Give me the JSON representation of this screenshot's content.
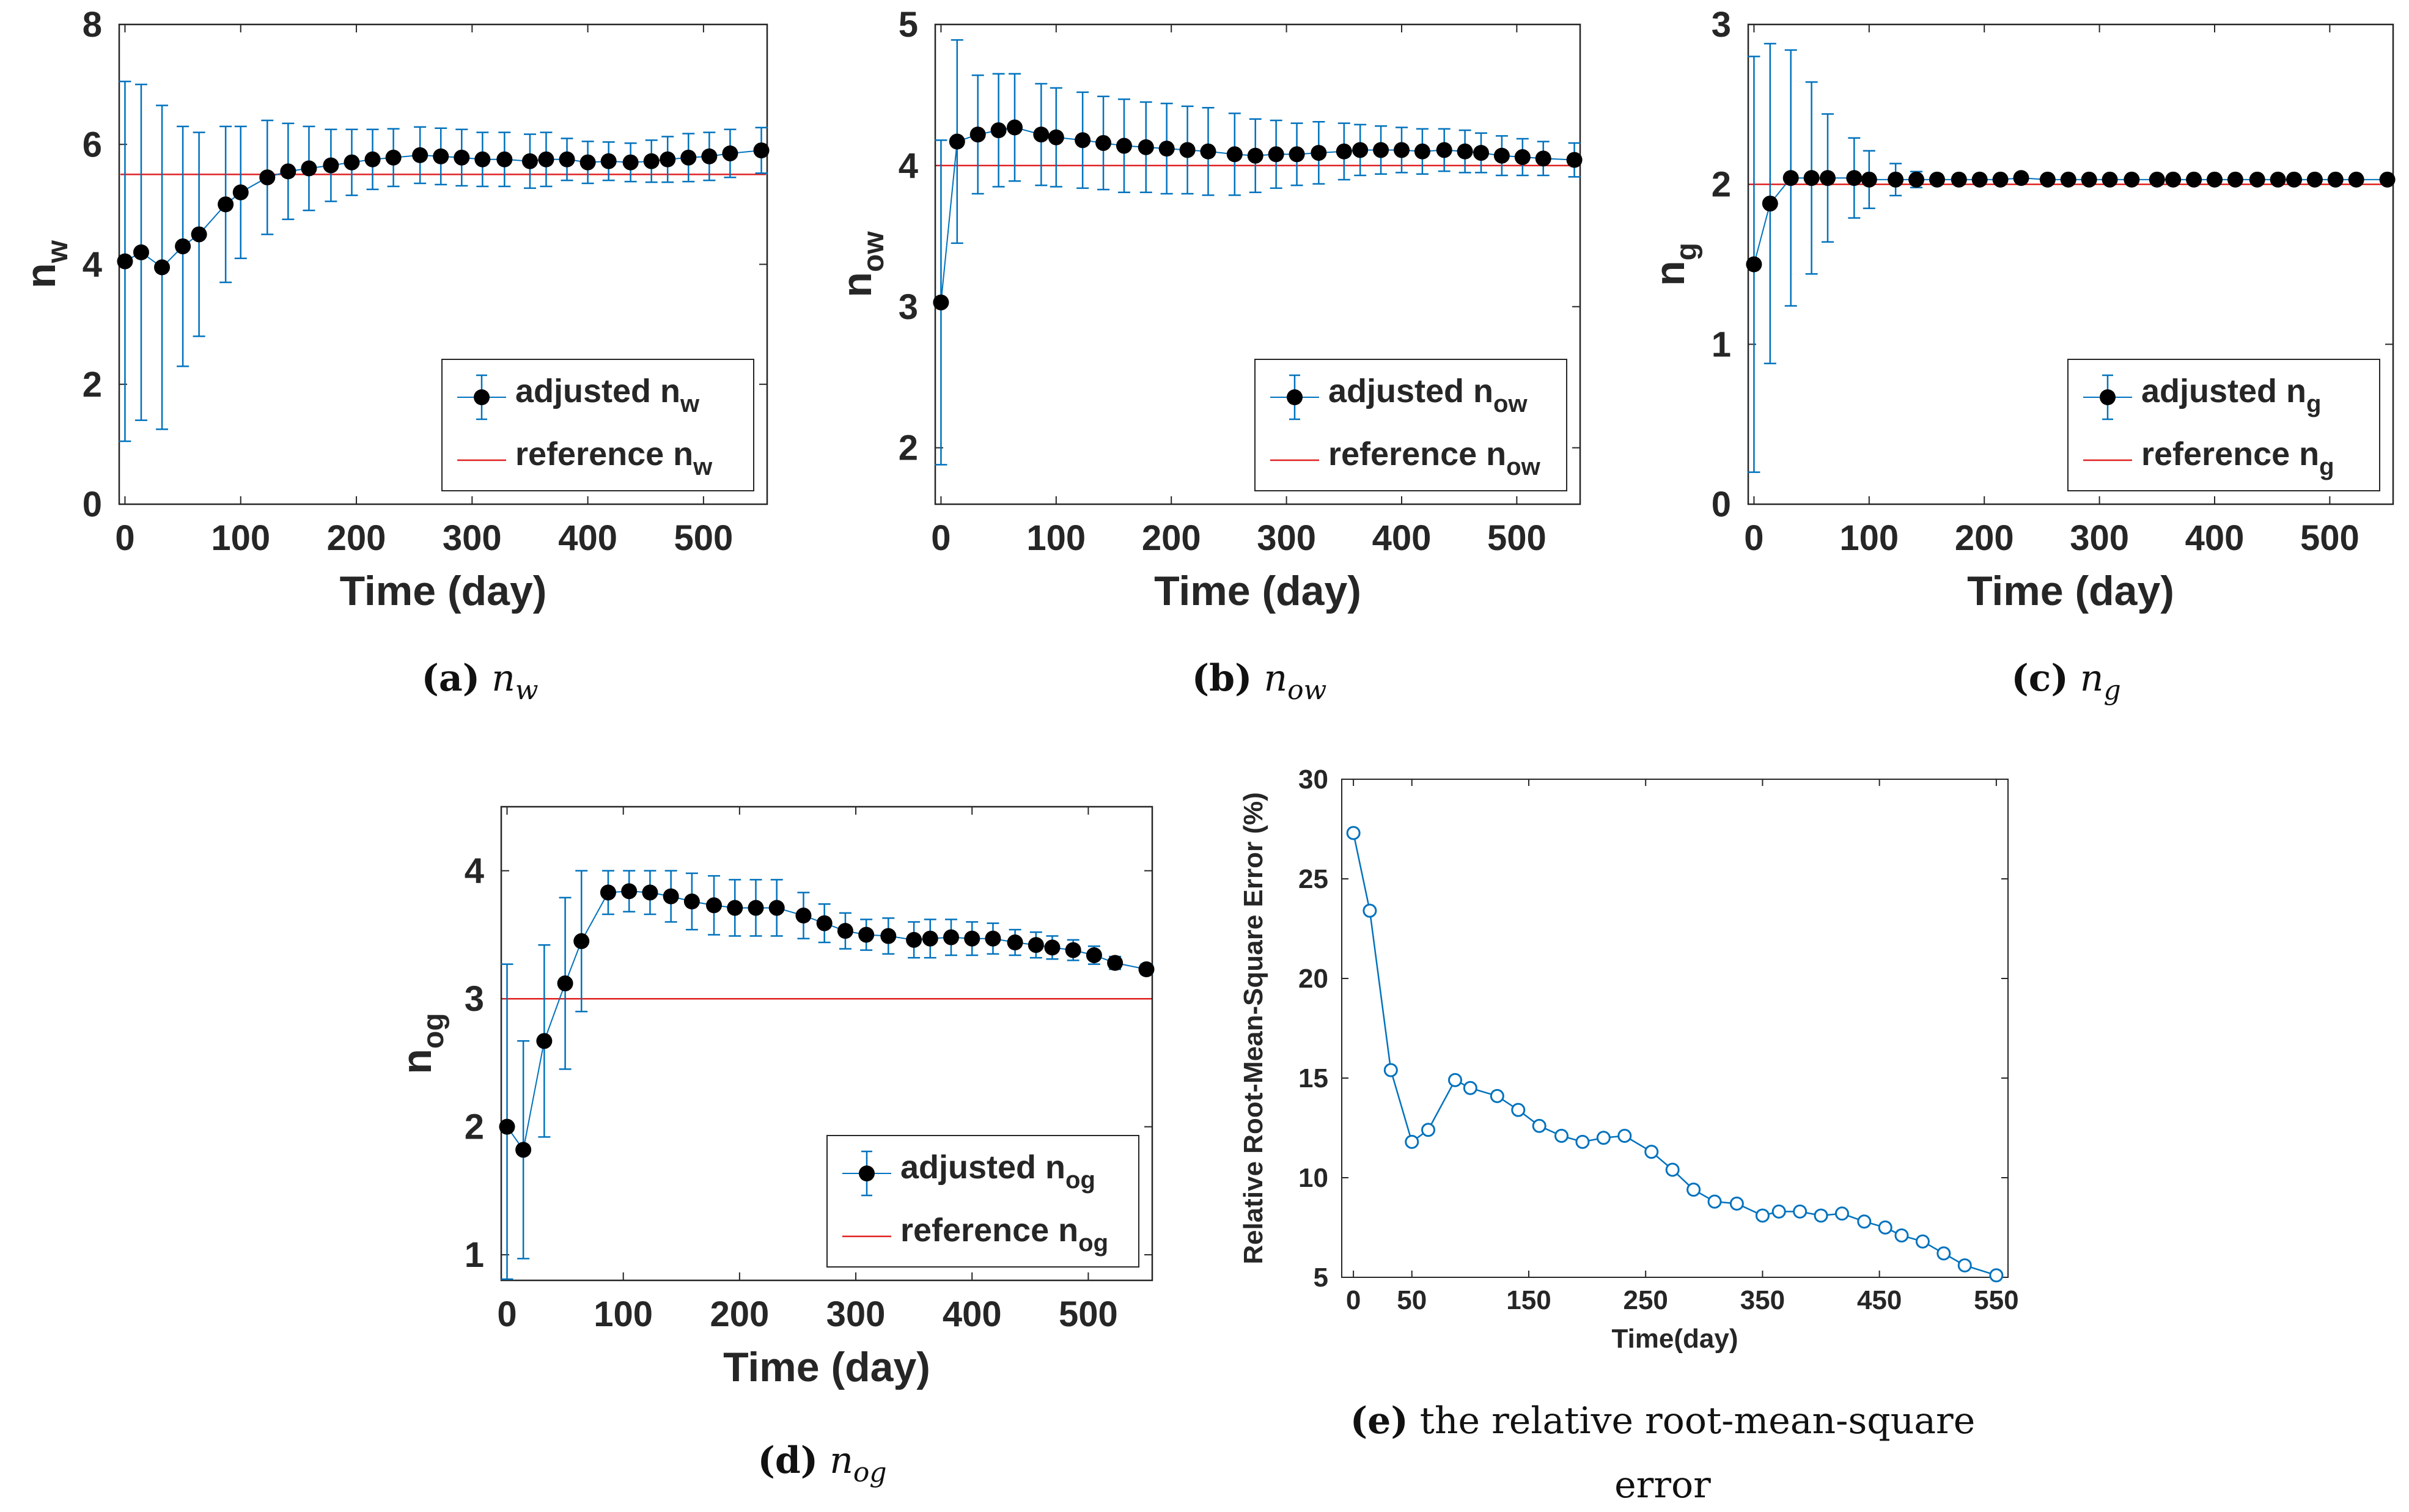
{
  "panels": [
    {
      "id": "a",
      "caption": {
        "letter": "(a)",
        "symbol": "n",
        "subscript": "w"
      },
      "chart_data": {
        "type": "line",
        "style": "errorbar",
        "xlabel": "Time (day)",
        "ylabel": {
          "base": "n",
          "sub": "w"
        },
        "xlim": [
          -5,
          555
        ],
        "ylim": [
          0,
          8
        ],
        "xticks": [
          0,
          100,
          200,
          300,
          400,
          500
        ],
        "yticks": [
          0,
          2,
          4,
          6,
          8
        ],
        "legend": {
          "position": "bottom-right",
          "adjusted": {
            "text": "adjusted n",
            "sub": "w"
          },
          "reference": {
            "text": "reference n",
            "sub": "w"
          }
        },
        "reference": 5.5,
        "x": [
          0,
          14,
          32,
          50,
          64,
          87,
          100,
          123,
          141,
          159,
          178,
          196,
          214,
          232,
          255,
          273,
          291,
          309,
          328,
          350,
          364,
          382,
          400,
          418,
          437,
          455,
          469,
          487,
          505,
          523,
          550
        ],
        "y": [
          4.05,
          4.2,
          3.95,
          4.3,
          4.5,
          5.0,
          5.2,
          5.45,
          5.55,
          5.6,
          5.65,
          5.7,
          5.75,
          5.78,
          5.82,
          5.8,
          5.78,
          5.75,
          5.75,
          5.72,
          5.75,
          5.75,
          5.7,
          5.72,
          5.7,
          5.72,
          5.75,
          5.78,
          5.8,
          5.85,
          5.9
        ],
        "err": [
          3.0,
          2.8,
          2.7,
          2.0,
          1.7,
          1.3,
          1.1,
          0.95,
          0.8,
          0.7,
          0.6,
          0.55,
          0.5,
          0.48,
          0.47,
          0.47,
          0.47,
          0.45,
          0.45,
          0.45,
          0.45,
          0.35,
          0.35,
          0.32,
          0.32,
          0.35,
          0.38,
          0.4,
          0.4,
          0.4,
          0.38
        ]
      }
    },
    {
      "id": "b",
      "caption": {
        "letter": "(b)",
        "symbol": "n",
        "subscript": "ow"
      },
      "chart_data": {
        "type": "line",
        "style": "errorbar",
        "xlabel": "Time (day)",
        "ylabel": {
          "base": "n",
          "sub": "ow"
        },
        "xlim": [
          -5,
          555
        ],
        "ylim": [
          1.6,
          5
        ],
        "xticks": [
          0,
          100,
          200,
          300,
          400,
          500
        ],
        "yticks": [
          2,
          3,
          4,
          5
        ],
        "legend": {
          "position": "bottom-right",
          "adjusted": {
            "text": "adjusted n",
            "sub": "ow"
          },
          "reference": {
            "text": "reference n",
            "sub": "ow"
          }
        },
        "reference": 4.0,
        "x": [
          0,
          14,
          32,
          50,
          64,
          87,
          100,
          123,
          141,
          159,
          178,
          196,
          214,
          232,
          255,
          273,
          291,
          309,
          328,
          350,
          364,
          382,
          400,
          418,
          437,
          455,
          469,
          487,
          505,
          523,
          550
        ],
        "y": [
          3.03,
          4.17,
          4.22,
          4.25,
          4.27,
          4.22,
          4.2,
          4.18,
          4.16,
          4.14,
          4.13,
          4.12,
          4.11,
          4.1,
          4.08,
          4.07,
          4.08,
          4.08,
          4.09,
          4.1,
          4.11,
          4.11,
          4.11,
          4.1,
          4.11,
          4.1,
          4.09,
          4.07,
          4.06,
          4.05,
          4.04
        ],
        "err": [
          1.15,
          0.72,
          0.42,
          0.4,
          0.38,
          0.36,
          0.35,
          0.34,
          0.33,
          0.33,
          0.32,
          0.32,
          0.31,
          0.31,
          0.29,
          0.26,
          0.24,
          0.22,
          0.22,
          0.2,
          0.18,
          0.17,
          0.16,
          0.16,
          0.15,
          0.15,
          0.14,
          0.14,
          0.13,
          0.12,
          0.12
        ]
      }
    },
    {
      "id": "c",
      "caption": {
        "letter": "(c)",
        "symbol": "n",
        "subscript": "g"
      },
      "chart_data": {
        "type": "line",
        "style": "errorbar",
        "xlabel": "Time (day)",
        "ylabel": {
          "base": "n",
          "sub": "g"
        },
        "xlim": [
          -5,
          555
        ],
        "ylim": [
          0,
          3
        ],
        "xticks": [
          0,
          100,
          200,
          300,
          400,
          500
        ],
        "yticks": [
          0,
          1,
          2,
          3
        ],
        "legend": {
          "position": "bottom-right",
          "adjusted": {
            "text": "adjusted n",
            "sub": "g"
          },
          "reference": {
            "text": "reference n",
            "sub": "g"
          }
        },
        "reference": 2.0,
        "x": [
          0,
          14,
          32,
          50,
          64,
          87,
          100,
          123,
          141,
          159,
          178,
          196,
          214,
          232,
          255,
          273,
          291,
          309,
          328,
          350,
          364,
          382,
          400,
          418,
          437,
          455,
          469,
          487,
          505,
          523,
          550
        ],
        "y": [
          1.5,
          1.88,
          2.04,
          2.04,
          2.04,
          2.04,
          2.03,
          2.03,
          2.03,
          2.03,
          2.03,
          2.03,
          2.03,
          2.04,
          2.03,
          2.03,
          2.03,
          2.03,
          2.03,
          2.03,
          2.03,
          2.03,
          2.03,
          2.03,
          2.03,
          2.03,
          2.03,
          2.03,
          2.03,
          2.03,
          2.03
        ],
        "err": [
          1.3,
          1.0,
          0.8,
          0.6,
          0.4,
          0.25,
          0.18,
          0.1,
          0.05,
          0.03,
          0.03,
          0.03,
          0.02,
          0.02,
          0.02,
          0.02,
          0.02,
          0.02,
          0.02,
          0.02,
          0.02,
          0.02,
          0.02,
          0.02,
          0.02,
          0.02,
          0.02,
          0.02,
          0.02,
          0.02,
          0.02
        ]
      }
    },
    {
      "id": "d",
      "caption": {
        "letter": "(d)",
        "symbol": "n",
        "subscript": "og"
      },
      "chart_data": {
        "type": "line",
        "style": "errorbar",
        "xlabel": "Time (day)",
        "ylabel": {
          "base": "n",
          "sub": "og"
        },
        "xlim": [
          -5,
          555
        ],
        "ylim": [
          0.8,
          4.5
        ],
        "xticks": [
          0,
          100,
          200,
          300,
          400,
          500
        ],
        "yticks": [
          1,
          2,
          3,
          4
        ],
        "legend": {
          "position": "bottom-right",
          "adjusted": {
            "text": "adjusted n",
            "sub": "og"
          },
          "reference": {
            "text": "reference n",
            "sub": "og"
          }
        },
        "reference": 3.0,
        "x": [
          0,
          14,
          32,
          50,
          64,
          87,
          105,
          123,
          141,
          159,
          178,
          196,
          214,
          232,
          255,
          273,
          291,
          309,
          328,
          350,
          364,
          382,
          400,
          418,
          437,
          455,
          469,
          487,
          505,
          523,
          550
        ],
        "y": [
          2.0,
          1.82,
          2.67,
          3.12,
          3.45,
          3.83,
          3.84,
          3.83,
          3.8,
          3.76,
          3.73,
          3.71,
          3.71,
          3.71,
          3.65,
          3.59,
          3.53,
          3.5,
          3.49,
          3.46,
          3.47,
          3.48,
          3.47,
          3.47,
          3.44,
          3.42,
          3.4,
          3.38,
          3.34,
          3.28,
          3.23
        ],
        "err": [
          1.27,
          0.85,
          0.75,
          0.67,
          0.55,
          0.17,
          0.16,
          0.17,
          0.2,
          0.22,
          0.23,
          0.22,
          0.22,
          0.22,
          0.18,
          0.15,
          0.14,
          0.12,
          0.14,
          0.14,
          0.15,
          0.14,
          0.13,
          0.12,
          0.1,
          0.1,
          0.09,
          0.08,
          0.07,
          0.05,
          0.04
        ]
      }
    },
    {
      "id": "e",
      "caption": {
        "letter": "(e)",
        "line1": "the relative root-mean-square",
        "line2": "error"
      },
      "chart_data": {
        "type": "line",
        "style": "circle-line",
        "xlabel": "Time(day)",
        "ylabel": "Relative Root-Mean-Square Error (%)",
        "xlim": [
          -10,
          560
        ],
        "ylim": [
          5,
          30
        ],
        "xticks": [
          0,
          50,
          150,
          250,
          350,
          450,
          550
        ],
        "yticks": [
          5,
          10,
          15,
          20,
          25,
          30
        ],
        "x": [
          0,
          14,
          32,
          50,
          64,
          87,
          100,
          123,
          141,
          159,
          178,
          196,
          214,
          232,
          255,
          273,
          291,
          309,
          328,
          350,
          364,
          382,
          400,
          418,
          437,
          455,
          469,
          487,
          505,
          523,
          550
        ],
        "values": [
          27.3,
          23.4,
          15.4,
          11.8,
          12.4,
          14.9,
          14.5,
          14.1,
          13.4,
          12.6,
          12.1,
          11.8,
          12.0,
          12.1,
          11.3,
          10.4,
          9.4,
          8.8,
          8.7,
          8.1,
          8.3,
          8.3,
          8.1,
          8.2,
          7.8,
          7.5,
          7.1,
          6.8,
          6.2,
          5.6,
          5.1
        ]
      }
    }
  ],
  "colors": {
    "series": "#0072BD",
    "marker": "#000000",
    "reference": "#E02020",
    "axis": "#262626"
  }
}
